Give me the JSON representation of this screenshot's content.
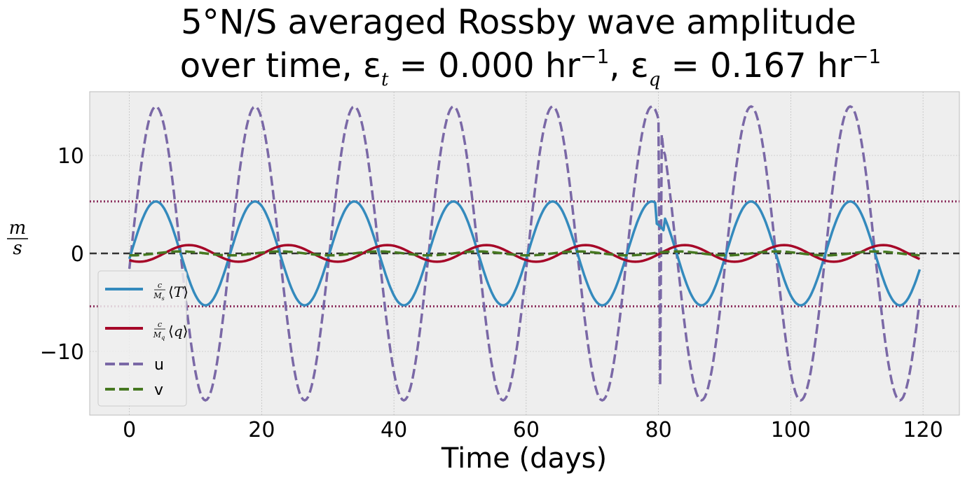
{
  "chart_data": {
    "type": "line",
    "title_line1": "5°N/S averaged Rossby wave amplitude",
    "title_line2": "over time, εt = 0.000 hr−1, εq = 0.167 hr−1",
    "xlabel": "Time (days)",
    "ylabel": "m/s",
    "xlim": [
      -6,
      125.5
    ],
    "ylim": [
      -16.5,
      16.5
    ],
    "xticks": [
      0,
      20,
      40,
      60,
      80,
      100,
      120
    ],
    "yticks": [
      -10,
      0,
      10
    ],
    "xtick_labels": [
      "0",
      "20",
      "40",
      "60",
      "80",
      "100",
      "120"
    ],
    "ytick_labels": [
      "−10",
      "0",
      "10"
    ],
    "grid": true,
    "legend_position": "lower-left",
    "reference_lines": {
      "zero_line": 0,
      "upper_dotted": 5.3,
      "lower_dotted": -5.4
    },
    "x_end": 119.5,
    "period_days": 15,
    "disturbance_day": 80.2,
    "colors": {
      "T": "#348ABD",
      "q": "#A60628",
      "u": "#7A68A6",
      "v": "#467821",
      "zero_line": "#333333",
      "dotted": "#8B2E5C",
      "axes_bg": "#EEEEEE",
      "grid": "#B2B2B2"
    },
    "series": [
      {
        "key": "T",
        "name": "c/Ms ⟨T⟩",
        "amplitude": 5.3,
        "peak_days": [
          4,
          19,
          34,
          49,
          64,
          79,
          94,
          109
        ],
        "trough_days": [
          11.5,
          26.5,
          41.5,
          56.5,
          71.5,
          86.5,
          101.5,
          116.5
        ],
        "style": "solid"
      },
      {
        "key": "q",
        "name": "c/Mq ⟨q⟩",
        "amplitude": 0.85,
        "peak_days": [
          9,
          24,
          39,
          54,
          69,
          84,
          99,
          114
        ],
        "trough_days": [
          1.5,
          16.5,
          31.5,
          46.5,
          61.5,
          76.5,
          91.5,
          106.5
        ],
        "style": "solid"
      },
      {
        "key": "u",
        "name": "u",
        "amplitude": 15,
        "peak_days": [
          4,
          19,
          34,
          49,
          64,
          79,
          94,
          109
        ],
        "trough_days": [
          11.5,
          26.5,
          41.5,
          56.5,
          71.5,
          86.5,
          101.5,
          116.5
        ],
        "spike_values": [
          -13.5,
          10.5
        ],
        "style": "dashed"
      },
      {
        "key": "v",
        "name": "v",
        "amplitude": 0.2,
        "style": "dashed"
      }
    ]
  }
}
